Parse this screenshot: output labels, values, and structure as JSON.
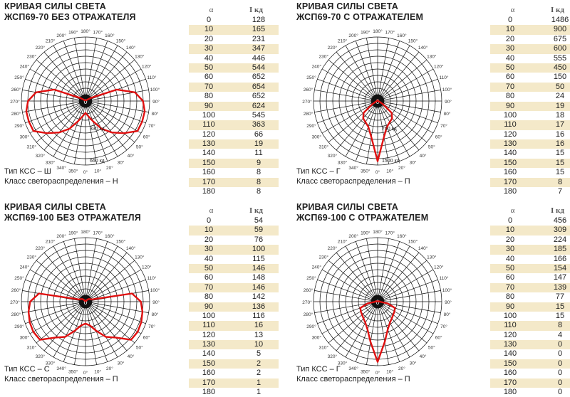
{
  "panels": [
    {
      "title1": "КРИВАЯ СИЛЫ СВЕТА",
      "title2": "ЖСП69-70 БЕЗ ОТРАЖАТЕЛЯ",
      "type_label": "Тип КСС – Ш",
      "class_label": "Класс светораспределения – Н",
      "ring_labels": [
        "330 кд",
        "660 кд"
      ],
      "table": {
        "head_alpha": "α",
        "head_i": "I кд",
        "rows": [
          [
            "0",
            "128"
          ],
          [
            "10",
            "165"
          ],
          [
            "20",
            "231"
          ],
          [
            "30",
            "347"
          ],
          [
            "40",
            "446"
          ],
          [
            "50",
            "544"
          ],
          [
            "60",
            "652"
          ],
          [
            "70",
            "654"
          ],
          [
            "80",
            "652"
          ],
          [
            "90",
            "624"
          ],
          [
            "100",
            "545"
          ],
          [
            "110",
            "363"
          ],
          [
            "120",
            "66"
          ],
          [
            "130",
            "19"
          ],
          [
            "140",
            "11"
          ],
          [
            "150",
            "9"
          ],
          [
            "160",
            "8"
          ],
          [
            "170",
            "8"
          ],
          [
            "180",
            "8"
          ]
        ]
      }
    },
    {
      "title1": "КРИВАЯ СИЛЫ СВЕТА",
      "title2": "ЖСП69-70 С ОТРАЖАТЕЛЕМ",
      "type_label": "Тип КСС – Г",
      "class_label": "Класс светораспределения – П",
      "ring_labels": [
        "750 кд",
        "1500 кд"
      ],
      "table": {
        "head_alpha": "α",
        "head_i": "I кд",
        "rows": [
          [
            "0",
            "1486"
          ],
          [
            "10",
            "900"
          ],
          [
            "20",
            "675"
          ],
          [
            "30",
            "600"
          ],
          [
            "40",
            "555"
          ],
          [
            "50",
            "450"
          ],
          [
            "60",
            "150"
          ],
          [
            "70",
            "50"
          ],
          [
            "80",
            "24"
          ],
          [
            "90",
            "19"
          ],
          [
            "100",
            "18"
          ],
          [
            "110",
            "17"
          ],
          [
            "120",
            "16"
          ],
          [
            "130",
            "16"
          ],
          [
            "140",
            "15"
          ],
          [
            "150",
            "15"
          ],
          [
            "160",
            "15"
          ],
          [
            "170",
            "8"
          ],
          [
            "180",
            "7"
          ]
        ]
      }
    },
    {
      "title1": "КРИВАЯ СИЛЫ СВЕТА",
      "title2": "ЖСП69-100 БЕЗ ОТРАЖАТЕЛЯ",
      "type_label": "Тип КСС – С",
      "class_label": "Класс светораспределения – П",
      "ring_labels": [],
      "table": {
        "head_alpha": "α",
        "head_i": "I кд",
        "rows": [
          [
            "0",
            "54"
          ],
          [
            "10",
            "59"
          ],
          [
            "20",
            "76"
          ],
          [
            "30",
            "100"
          ],
          [
            "40",
            "115"
          ],
          [
            "50",
            "146"
          ],
          [
            "60",
            "148"
          ],
          [
            "70",
            "146"
          ],
          [
            "80",
            "142"
          ],
          [
            "90",
            "136"
          ],
          [
            "100",
            "116"
          ],
          [
            "110",
            "16"
          ],
          [
            "120",
            "13"
          ],
          [
            "130",
            "10"
          ],
          [
            "140",
            "5"
          ],
          [
            "150",
            "2"
          ],
          [
            "160",
            "2"
          ],
          [
            "170",
            "1"
          ],
          [
            "180",
            "1"
          ]
        ]
      }
    },
    {
      "title1": "КРИВАЯ СИЛЫ СВЕТА",
      "title2": "ЖСП69-100 С ОТРАЖАТЕЛЕМ",
      "type_label": "Тип КСС – Г",
      "class_label": "Класс светораспределения – П",
      "ring_labels": [],
      "table": {
        "head_alpha": "α",
        "head_i": "I кд",
        "rows": [
          [
            "0",
            "456"
          ],
          [
            "10",
            "309"
          ],
          [
            "20",
            "224"
          ],
          [
            "30",
            "185"
          ],
          [
            "40",
            "166"
          ],
          [
            "50",
            "154"
          ],
          [
            "60",
            "147"
          ],
          [
            "70",
            "139"
          ],
          [
            "80",
            "77"
          ],
          [
            "90",
            "15"
          ],
          [
            "100",
            "15"
          ],
          [
            "110",
            "8"
          ],
          [
            "120",
            "4"
          ],
          [
            "130",
            "0"
          ],
          [
            "140",
            "0"
          ],
          [
            "150",
            "0"
          ],
          [
            "160",
            "0"
          ],
          [
            "170",
            "0"
          ],
          [
            "180",
            "0"
          ]
        ]
      }
    }
  ],
  "angle_labels": [
    "0°",
    "10°",
    "20°",
    "30°",
    "40°",
    "50°",
    "60°",
    "70°",
    "80°",
    "90°",
    "100°",
    "110°",
    "120°",
    "130°",
    "140°",
    "150°",
    "160°",
    "170°",
    "180°",
    "190°",
    "200°",
    "210°",
    "220°",
    "230°",
    "240°",
    "250°",
    "260°",
    "270°",
    "280°",
    "290°",
    "300°",
    "310°",
    "320°",
    "330°",
    "340°",
    "350°"
  ],
  "center_label": "0",
  "colors": {
    "curve": "#e01010",
    "grid": "#111111",
    "stripe": "#f4e9c9"
  }
}
